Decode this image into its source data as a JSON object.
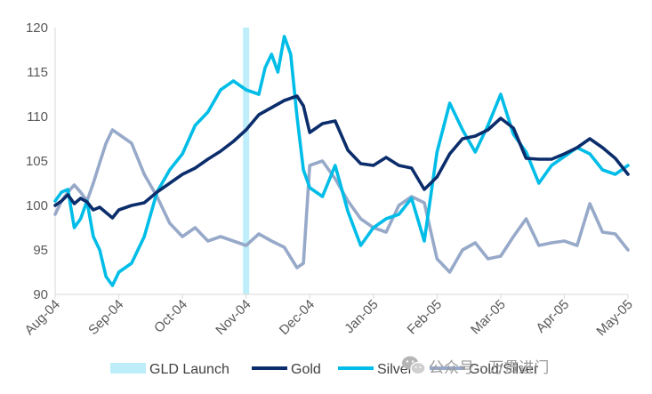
{
  "chart_data": {
    "type": "line",
    "title": "",
    "xlabel": "",
    "ylabel": "",
    "ylim": [
      90,
      120
    ],
    "yticks": [
      90,
      95,
      100,
      105,
      110,
      115,
      120
    ],
    "x_tick_labels": [
      "Aug-04",
      "Sep-04",
      "Oct-04",
      "Nov-04",
      "Dec-04",
      "Jan-05",
      "Feb-05",
      "Mar-05",
      "Apr-05",
      "May-05"
    ],
    "grid": false,
    "legend_position": "bottom",
    "annotation": {
      "label": "GLD Launch",
      "x": 3.0,
      "color": "#bdeefa"
    },
    "series": [
      {
        "name": "Gold",
        "color": "#0b2d6b",
        "x": [
          0,
          0.1,
          0.2,
          0.3,
          0.4,
          0.5,
          0.6,
          0.7,
          0.8,
          0.9,
          1.0,
          1.2,
          1.4,
          1.6,
          1.8,
          2.0,
          2.2,
          2.4,
          2.6,
          2.8,
          3.0,
          3.2,
          3.4,
          3.6,
          3.8,
          3.9,
          4.0,
          4.2,
          4.4,
          4.6,
          4.8,
          5.0,
          5.2,
          5.4,
          5.6,
          5.8,
          6.0,
          6.2,
          6.4,
          6.6,
          6.8,
          7.0,
          7.2,
          7.4,
          7.6,
          7.8,
          8.0,
          8.2,
          8.4,
          8.6,
          8.8,
          9.0
        ],
        "values": [
          100,
          100.5,
          101.2,
          100.2,
          100.8,
          100.4,
          99.5,
          99.8,
          99.2,
          98.6,
          99.5,
          100,
          100.3,
          101.5,
          102.5,
          103.5,
          104.2,
          105.2,
          106.1,
          107.2,
          108.5,
          110.2,
          111,
          111.8,
          112.3,
          111.2,
          108.2,
          109.2,
          109.5,
          106.2,
          104.7,
          104.5,
          105.4,
          104.5,
          104.2,
          101.8,
          103.2,
          105.8,
          107.5,
          107.8,
          108.5,
          109.8,
          108.7,
          105.3,
          105.2,
          105.2,
          105.8,
          106.5,
          107.5,
          106.5,
          105.3,
          103.5
        ]
      },
      {
        "name": "Silver",
        "color": "#00bde8",
        "x": [
          0,
          0.1,
          0.2,
          0.3,
          0.4,
          0.5,
          0.6,
          0.7,
          0.8,
          0.9,
          1.0,
          1.2,
          1.4,
          1.6,
          1.8,
          2.0,
          2.2,
          2.4,
          2.6,
          2.8,
          3.0,
          3.2,
          3.3,
          3.4,
          3.5,
          3.6,
          3.7,
          3.8,
          3.9,
          4.0,
          4.2,
          4.4,
          4.6,
          4.8,
          5.0,
          5.2,
          5.4,
          5.6,
          5.8,
          6.0,
          6.2,
          6.4,
          6.6,
          6.8,
          7.0,
          7.2,
          7.4,
          7.6,
          7.8,
          8.0,
          8.2,
          8.4,
          8.6,
          8.8,
          9.0
        ],
        "values": [
          100.5,
          101.5,
          101.8,
          97.5,
          98.5,
          100.5,
          96.5,
          95,
          92,
          91,
          92.5,
          93.5,
          96.5,
          101.5,
          104,
          105.8,
          109,
          110.5,
          113,
          114,
          113,
          112.5,
          115.5,
          117,
          115,
          119,
          117,
          110,
          104,
          102,
          101,
          104.5,
          99.3,
          95.5,
          97.5,
          98.5,
          99,
          100.8,
          96,
          106,
          111.5,
          108.5,
          106,
          109,
          112.5,
          108,
          106,
          102.5,
          104.5,
          105.5,
          106.5,
          105.8,
          104,
          103.5,
          104.5
        ]
      },
      {
        "name": "Gold/Silver",
        "color": "#97a9c9",
        "x": [
          0,
          0.1,
          0.2,
          0.3,
          0.4,
          0.5,
          0.6,
          0.7,
          0.8,
          0.9,
          1.0,
          1.2,
          1.4,
          1.6,
          1.8,
          2.0,
          2.2,
          2.4,
          2.6,
          2.8,
          3.0,
          3.2,
          3.4,
          3.6,
          3.8,
          3.9,
          4.0,
          4.2,
          4.4,
          4.6,
          4.8,
          5.0,
          5.2,
          5.4,
          5.6,
          5.8,
          6.0,
          6.2,
          6.4,
          6.6,
          6.8,
          7.0,
          7.2,
          7.4,
          7.6,
          7.8,
          8.0,
          8.2,
          8.4,
          8.6,
          8.8,
          9.0
        ],
        "values": [
          99,
          100.5,
          101.5,
          102.3,
          101.5,
          100.5,
          102.5,
          104.8,
          107,
          108.5,
          108,
          107,
          103.5,
          101,
          98,
          96.5,
          97.5,
          96,
          96.5,
          96,
          95.5,
          96.8,
          96,
          95.3,
          93,
          93.5,
          104.5,
          105,
          103,
          100.5,
          98.5,
          97.5,
          97,
          100,
          101,
          100.3,
          94,
          92.5,
          95,
          95.8,
          94,
          94.3,
          96.5,
          98.5,
          95.5,
          95.8,
          96,
          95.5,
          100.2,
          97,
          96.8,
          95
        ]
      }
    ]
  },
  "watermark": {
    "text": "公众号 · 万贯进门",
    "icon": "wechat-icon"
  }
}
